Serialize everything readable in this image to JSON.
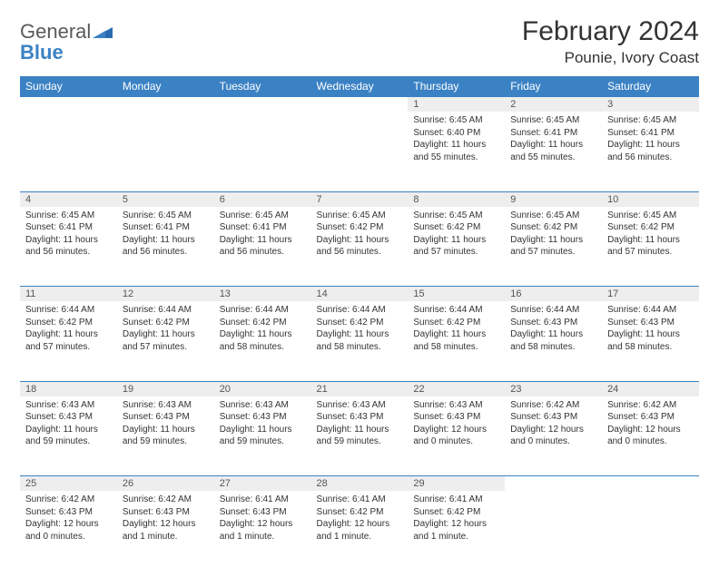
{
  "logo": {
    "general": "General",
    "blue": "Blue"
  },
  "title": "February 2024",
  "location": "Pounie, Ivory Coast",
  "colors": {
    "header_bg": "#3b82c4",
    "header_text": "#ffffff",
    "daynum_bg": "#eeeeee",
    "border": "#3b82c4",
    "text": "#333333",
    "logo_gray": "#5a5a5a",
    "logo_blue": "#3b82c4"
  },
  "day_headers": [
    "Sunday",
    "Monday",
    "Tuesday",
    "Wednesday",
    "Thursday",
    "Friday",
    "Saturday"
  ],
  "weeks": [
    [
      null,
      null,
      null,
      null,
      {
        "n": "1",
        "sr": "Sunrise: 6:45 AM",
        "ss": "Sunset: 6:40 PM",
        "dl": "Daylight: 11 hours and 55 minutes."
      },
      {
        "n": "2",
        "sr": "Sunrise: 6:45 AM",
        "ss": "Sunset: 6:41 PM",
        "dl": "Daylight: 11 hours and 55 minutes."
      },
      {
        "n": "3",
        "sr": "Sunrise: 6:45 AM",
        "ss": "Sunset: 6:41 PM",
        "dl": "Daylight: 11 hours and 56 minutes."
      }
    ],
    [
      {
        "n": "4",
        "sr": "Sunrise: 6:45 AM",
        "ss": "Sunset: 6:41 PM",
        "dl": "Daylight: 11 hours and 56 minutes."
      },
      {
        "n": "5",
        "sr": "Sunrise: 6:45 AM",
        "ss": "Sunset: 6:41 PM",
        "dl": "Daylight: 11 hours and 56 minutes."
      },
      {
        "n": "6",
        "sr": "Sunrise: 6:45 AM",
        "ss": "Sunset: 6:41 PM",
        "dl": "Daylight: 11 hours and 56 minutes."
      },
      {
        "n": "7",
        "sr": "Sunrise: 6:45 AM",
        "ss": "Sunset: 6:42 PM",
        "dl": "Daylight: 11 hours and 56 minutes."
      },
      {
        "n": "8",
        "sr": "Sunrise: 6:45 AM",
        "ss": "Sunset: 6:42 PM",
        "dl": "Daylight: 11 hours and 57 minutes."
      },
      {
        "n": "9",
        "sr": "Sunrise: 6:45 AM",
        "ss": "Sunset: 6:42 PM",
        "dl": "Daylight: 11 hours and 57 minutes."
      },
      {
        "n": "10",
        "sr": "Sunrise: 6:45 AM",
        "ss": "Sunset: 6:42 PM",
        "dl": "Daylight: 11 hours and 57 minutes."
      }
    ],
    [
      {
        "n": "11",
        "sr": "Sunrise: 6:44 AM",
        "ss": "Sunset: 6:42 PM",
        "dl": "Daylight: 11 hours and 57 minutes."
      },
      {
        "n": "12",
        "sr": "Sunrise: 6:44 AM",
        "ss": "Sunset: 6:42 PM",
        "dl": "Daylight: 11 hours and 57 minutes."
      },
      {
        "n": "13",
        "sr": "Sunrise: 6:44 AM",
        "ss": "Sunset: 6:42 PM",
        "dl": "Daylight: 11 hours and 58 minutes."
      },
      {
        "n": "14",
        "sr": "Sunrise: 6:44 AM",
        "ss": "Sunset: 6:42 PM",
        "dl": "Daylight: 11 hours and 58 minutes."
      },
      {
        "n": "15",
        "sr": "Sunrise: 6:44 AM",
        "ss": "Sunset: 6:42 PM",
        "dl": "Daylight: 11 hours and 58 minutes."
      },
      {
        "n": "16",
        "sr": "Sunrise: 6:44 AM",
        "ss": "Sunset: 6:43 PM",
        "dl": "Daylight: 11 hours and 58 minutes."
      },
      {
        "n": "17",
        "sr": "Sunrise: 6:44 AM",
        "ss": "Sunset: 6:43 PM",
        "dl": "Daylight: 11 hours and 58 minutes."
      }
    ],
    [
      {
        "n": "18",
        "sr": "Sunrise: 6:43 AM",
        "ss": "Sunset: 6:43 PM",
        "dl": "Daylight: 11 hours and 59 minutes."
      },
      {
        "n": "19",
        "sr": "Sunrise: 6:43 AM",
        "ss": "Sunset: 6:43 PM",
        "dl": "Daylight: 11 hours and 59 minutes."
      },
      {
        "n": "20",
        "sr": "Sunrise: 6:43 AM",
        "ss": "Sunset: 6:43 PM",
        "dl": "Daylight: 11 hours and 59 minutes."
      },
      {
        "n": "21",
        "sr": "Sunrise: 6:43 AM",
        "ss": "Sunset: 6:43 PM",
        "dl": "Daylight: 11 hours and 59 minutes."
      },
      {
        "n": "22",
        "sr": "Sunrise: 6:43 AM",
        "ss": "Sunset: 6:43 PM",
        "dl": "Daylight: 12 hours and 0 minutes."
      },
      {
        "n": "23",
        "sr": "Sunrise: 6:42 AM",
        "ss": "Sunset: 6:43 PM",
        "dl": "Daylight: 12 hours and 0 minutes."
      },
      {
        "n": "24",
        "sr": "Sunrise: 6:42 AM",
        "ss": "Sunset: 6:43 PM",
        "dl": "Daylight: 12 hours and 0 minutes."
      }
    ],
    [
      {
        "n": "25",
        "sr": "Sunrise: 6:42 AM",
        "ss": "Sunset: 6:43 PM",
        "dl": "Daylight: 12 hours and 0 minutes."
      },
      {
        "n": "26",
        "sr": "Sunrise: 6:42 AM",
        "ss": "Sunset: 6:43 PM",
        "dl": "Daylight: 12 hours and 1 minute."
      },
      {
        "n": "27",
        "sr": "Sunrise: 6:41 AM",
        "ss": "Sunset: 6:43 PM",
        "dl": "Daylight: 12 hours and 1 minute."
      },
      {
        "n": "28",
        "sr": "Sunrise: 6:41 AM",
        "ss": "Sunset: 6:42 PM",
        "dl": "Daylight: 12 hours and 1 minute."
      },
      {
        "n": "29",
        "sr": "Sunrise: 6:41 AM",
        "ss": "Sunset: 6:42 PM",
        "dl": "Daylight: 12 hours and 1 minute."
      },
      null,
      null
    ]
  ]
}
